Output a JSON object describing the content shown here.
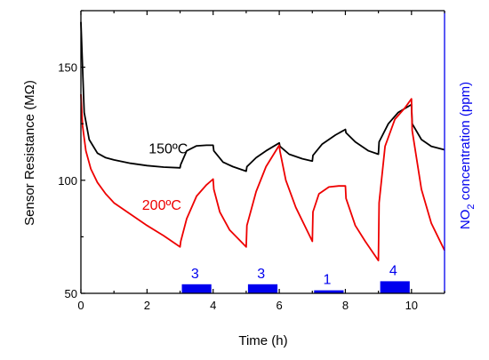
{
  "chart_data": {
    "type": "line",
    "xlabel": "Time (h)",
    "ylabel": "Sensor Resistance (MΩ)",
    "y2label": {
      "main": "NO",
      "sub": "2",
      "rest": " concentration (ppm)"
    },
    "xlim": [
      0,
      11
    ],
    "ylim": [
      50,
      175
    ],
    "xticks": [
      0,
      2,
      4,
      6,
      8,
      10
    ],
    "yticks": [
      50,
      100,
      150
    ],
    "grid": false,
    "colors": {
      "axis": "#000000",
      "right_axis": "#0000ee",
      "pulse": "#0000ee"
    },
    "series": [
      {
        "name": "150ºC",
        "color": "#000000",
        "label_at": [
          2.05,
          112
        ],
        "x": [
          0,
          0.1,
          0.25,
          0.5,
          0.75,
          1.0,
          1.5,
          2.0,
          2.5,
          3.0,
          3.02,
          3.2,
          3.5,
          3.8,
          4.0,
          4.02,
          4.3,
          4.6,
          5.0,
          5.02,
          5.3,
          5.6,
          6.0,
          6.02,
          6.3,
          6.7,
          7.0,
          7.02,
          7.3,
          7.7,
          8.0,
          8.02,
          8.3,
          8.7,
          9.0,
          9.02,
          9.3,
          9.6,
          10.0,
          10.02,
          10.3,
          10.6,
          11.0
        ],
        "y": [
          170,
          130,
          118,
          112,
          110,
          109,
          107.5,
          106.5,
          105.8,
          105.5,
          107,
          113,
          115.2,
          115.5,
          115.5,
          113,
          108,
          106,
          104,
          106,
          110,
          113,
          116.5,
          115,
          111.5,
          109.5,
          108.5,
          111,
          116,
          120,
          122.5,
          121,
          117,
          113,
          111.5,
          117,
          125,
          130,
          133.5,
          125,
          118,
          115,
          113.5
        ]
      },
      {
        "name": "200ºC",
        "color": "#ee0000",
        "label_at": [
          1.85,
          87
        ],
        "x": [
          0,
          0.05,
          0.15,
          0.3,
          0.5,
          0.75,
          1.0,
          1.5,
          2.0,
          2.5,
          3.0,
          3.02,
          3.2,
          3.5,
          3.8,
          4.0,
          4.02,
          4.2,
          4.5,
          5.0,
          5.02,
          5.3,
          5.6,
          6.0,
          6.02,
          6.2,
          6.5,
          7.0,
          7.02,
          7.2,
          7.5,
          7.8,
          8.0,
          8.02,
          8.3,
          8.6,
          9.0,
          9.02,
          9.2,
          9.5,
          9.8,
          10.0,
          10.02,
          10.3,
          10.6,
          11.0
        ],
        "y": [
          138,
          124,
          113,
          105,
          99,
          94,
          90,
          85,
          80,
          75.5,
          70.5,
          73,
          83,
          93,
          98,
          100.5,
          96,
          86,
          78,
          70.5,
          80,
          95,
          106,
          115.5,
          113,
          100,
          88,
          73,
          86,
          94,
          97,
          97.5,
          97.5,
          92,
          80,
          73,
          64.5,
          90,
          115,
          127,
          132,
          136,
          122,
          96,
          81,
          69
        ]
      }
    ],
    "pulses": [
      {
        "start": 3.0,
        "end": 4.0,
        "ppm": 3,
        "label": "3",
        "label_at": 3.45
      },
      {
        "start": 5.0,
        "end": 6.0,
        "ppm": 3,
        "label": "3",
        "label_at": 5.45
      },
      {
        "start": 7.0,
        "end": 8.0,
        "ppm": 1,
        "label": "1",
        "label_at": 7.45
      },
      {
        "start": 9.0,
        "end": 10.0,
        "ppm": 4,
        "label": "4",
        "label_at": 9.45
      }
    ]
  }
}
